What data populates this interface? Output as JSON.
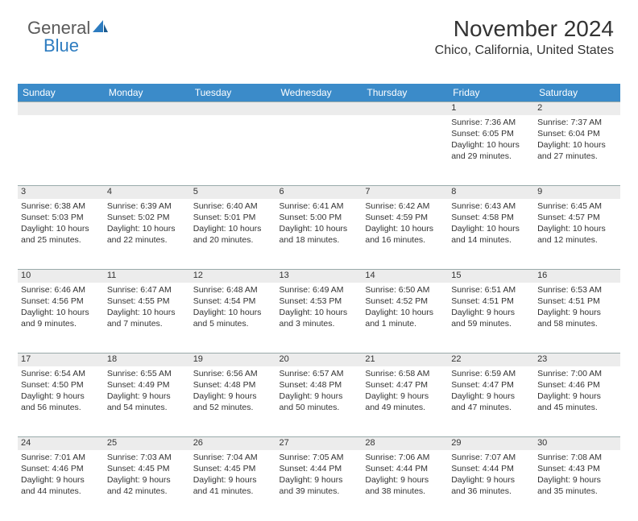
{
  "logo": {
    "text1": "General",
    "text2": "Blue"
  },
  "title": "November 2024",
  "location": "Chico, California, United States",
  "colors": {
    "header_bg": "#3b8bc9",
    "header_text": "#ffffff",
    "daynum_bg": "#ececec",
    "text": "#333333",
    "logo_gray": "#5a5a5a",
    "logo_blue": "#2d7cc0"
  },
  "day_names": [
    "Sunday",
    "Monday",
    "Tuesday",
    "Wednesday",
    "Thursday",
    "Friday",
    "Saturday"
  ],
  "weeks": [
    {
      "nums": [
        "",
        "",
        "",
        "",
        "",
        "1",
        "2"
      ],
      "cells": [
        null,
        null,
        null,
        null,
        null,
        {
          "sunrise": "Sunrise: 7:36 AM",
          "sunset": "Sunset: 6:05 PM",
          "daylight": "Daylight: 10 hours and 29 minutes."
        },
        {
          "sunrise": "Sunrise: 7:37 AM",
          "sunset": "Sunset: 6:04 PM",
          "daylight": "Daylight: 10 hours and 27 minutes."
        }
      ]
    },
    {
      "nums": [
        "3",
        "4",
        "5",
        "6",
        "7",
        "8",
        "9"
      ],
      "cells": [
        {
          "sunrise": "Sunrise: 6:38 AM",
          "sunset": "Sunset: 5:03 PM",
          "daylight": "Daylight: 10 hours and 25 minutes."
        },
        {
          "sunrise": "Sunrise: 6:39 AM",
          "sunset": "Sunset: 5:02 PM",
          "daylight": "Daylight: 10 hours and 22 minutes."
        },
        {
          "sunrise": "Sunrise: 6:40 AM",
          "sunset": "Sunset: 5:01 PM",
          "daylight": "Daylight: 10 hours and 20 minutes."
        },
        {
          "sunrise": "Sunrise: 6:41 AM",
          "sunset": "Sunset: 5:00 PM",
          "daylight": "Daylight: 10 hours and 18 minutes."
        },
        {
          "sunrise": "Sunrise: 6:42 AM",
          "sunset": "Sunset: 4:59 PM",
          "daylight": "Daylight: 10 hours and 16 minutes."
        },
        {
          "sunrise": "Sunrise: 6:43 AM",
          "sunset": "Sunset: 4:58 PM",
          "daylight": "Daylight: 10 hours and 14 minutes."
        },
        {
          "sunrise": "Sunrise: 6:45 AM",
          "sunset": "Sunset: 4:57 PM",
          "daylight": "Daylight: 10 hours and 12 minutes."
        }
      ]
    },
    {
      "nums": [
        "10",
        "11",
        "12",
        "13",
        "14",
        "15",
        "16"
      ],
      "cells": [
        {
          "sunrise": "Sunrise: 6:46 AM",
          "sunset": "Sunset: 4:56 PM",
          "daylight": "Daylight: 10 hours and 9 minutes."
        },
        {
          "sunrise": "Sunrise: 6:47 AM",
          "sunset": "Sunset: 4:55 PM",
          "daylight": "Daylight: 10 hours and 7 minutes."
        },
        {
          "sunrise": "Sunrise: 6:48 AM",
          "sunset": "Sunset: 4:54 PM",
          "daylight": "Daylight: 10 hours and 5 minutes."
        },
        {
          "sunrise": "Sunrise: 6:49 AM",
          "sunset": "Sunset: 4:53 PM",
          "daylight": "Daylight: 10 hours and 3 minutes."
        },
        {
          "sunrise": "Sunrise: 6:50 AM",
          "sunset": "Sunset: 4:52 PM",
          "daylight": "Daylight: 10 hours and 1 minute."
        },
        {
          "sunrise": "Sunrise: 6:51 AM",
          "sunset": "Sunset: 4:51 PM",
          "daylight": "Daylight: 9 hours and 59 minutes."
        },
        {
          "sunrise": "Sunrise: 6:53 AM",
          "sunset": "Sunset: 4:51 PM",
          "daylight": "Daylight: 9 hours and 58 minutes."
        }
      ]
    },
    {
      "nums": [
        "17",
        "18",
        "19",
        "20",
        "21",
        "22",
        "23"
      ],
      "cells": [
        {
          "sunrise": "Sunrise: 6:54 AM",
          "sunset": "Sunset: 4:50 PM",
          "daylight": "Daylight: 9 hours and 56 minutes."
        },
        {
          "sunrise": "Sunrise: 6:55 AM",
          "sunset": "Sunset: 4:49 PM",
          "daylight": "Daylight: 9 hours and 54 minutes."
        },
        {
          "sunrise": "Sunrise: 6:56 AM",
          "sunset": "Sunset: 4:48 PM",
          "daylight": "Daylight: 9 hours and 52 minutes."
        },
        {
          "sunrise": "Sunrise: 6:57 AM",
          "sunset": "Sunset: 4:48 PM",
          "daylight": "Daylight: 9 hours and 50 minutes."
        },
        {
          "sunrise": "Sunrise: 6:58 AM",
          "sunset": "Sunset: 4:47 PM",
          "daylight": "Daylight: 9 hours and 49 minutes."
        },
        {
          "sunrise": "Sunrise: 6:59 AM",
          "sunset": "Sunset: 4:47 PM",
          "daylight": "Daylight: 9 hours and 47 minutes."
        },
        {
          "sunrise": "Sunrise: 7:00 AM",
          "sunset": "Sunset: 4:46 PM",
          "daylight": "Daylight: 9 hours and 45 minutes."
        }
      ]
    },
    {
      "nums": [
        "24",
        "25",
        "26",
        "27",
        "28",
        "29",
        "30"
      ],
      "cells": [
        {
          "sunrise": "Sunrise: 7:01 AM",
          "sunset": "Sunset: 4:46 PM",
          "daylight": "Daylight: 9 hours and 44 minutes."
        },
        {
          "sunrise": "Sunrise: 7:03 AM",
          "sunset": "Sunset: 4:45 PM",
          "daylight": "Daylight: 9 hours and 42 minutes."
        },
        {
          "sunrise": "Sunrise: 7:04 AM",
          "sunset": "Sunset: 4:45 PM",
          "daylight": "Daylight: 9 hours and 41 minutes."
        },
        {
          "sunrise": "Sunrise: 7:05 AM",
          "sunset": "Sunset: 4:44 PM",
          "daylight": "Daylight: 9 hours and 39 minutes."
        },
        {
          "sunrise": "Sunrise: 7:06 AM",
          "sunset": "Sunset: 4:44 PM",
          "daylight": "Daylight: 9 hours and 38 minutes."
        },
        {
          "sunrise": "Sunrise: 7:07 AM",
          "sunset": "Sunset: 4:44 PM",
          "daylight": "Daylight: 9 hours and 36 minutes."
        },
        {
          "sunrise": "Sunrise: 7:08 AM",
          "sunset": "Sunset: 4:43 PM",
          "daylight": "Daylight: 9 hours and 35 minutes."
        }
      ]
    }
  ]
}
